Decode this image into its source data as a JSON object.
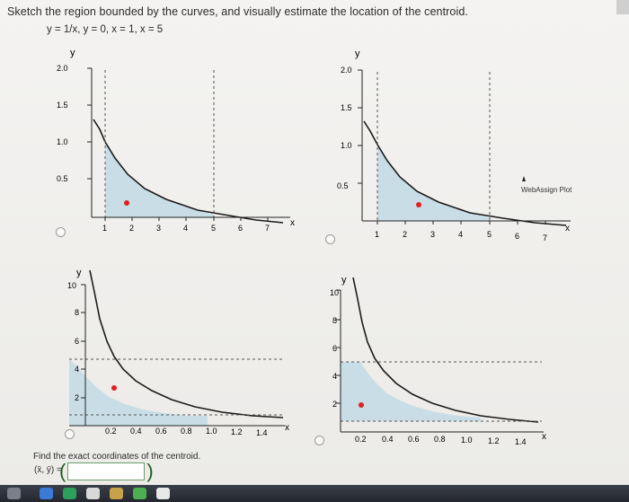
{
  "question": "Sketch the region bounded by the curves, and visually estimate the location of the centroid.",
  "equation": "y = 1/x, y = 0, x = 1, x = 5",
  "panels": [
    {
      "id": "A",
      "y_label": "y",
      "x_label": "x",
      "y_ticks": [
        "2.0",
        "1.5",
        "1.0",
        "0.5"
      ],
      "x_ticks": [
        "1",
        "2",
        "3",
        "4",
        "5",
        "6",
        "7"
      ],
      "watermark": ""
    },
    {
      "id": "B",
      "y_label": "y",
      "x_label": "x",
      "y_ticks": [
        "2.0",
        "1.5",
        "1.0",
        "0.5"
      ],
      "x_ticks": [
        "1",
        "2",
        "3",
        "4",
        "5",
        "6",
        "7"
      ],
      "watermark": "WebAssign Plot"
    },
    {
      "id": "C",
      "y_label": "y",
      "x_label": "x",
      "y_ticks": [
        "10",
        "8",
        "6",
        "4",
        "2"
      ],
      "x_ticks": [
        "0.2",
        "0.4",
        "0.6",
        "0.8",
        "1.0",
        "1.2",
        "1.4"
      ],
      "watermark": ""
    },
    {
      "id": "D",
      "y_label": "y",
      "x_label": "x",
      "y_ticks": [
        "10",
        "8",
        "6",
        "4",
        "2"
      ],
      "x_ticks": [
        "0.2",
        "0.4",
        "0.6",
        "0.8",
        "1.0",
        "1.2",
        "1.4"
      ],
      "watermark": ""
    }
  ],
  "find_prompt": "Find the exact coordinates of the centroid.",
  "coords_label": "(x̄, ȳ) =",
  "answer": {
    "open": "(",
    "close": ")",
    "value": ""
  },
  "colors": {
    "region_fill": "#c9dde6",
    "curve": "#1a1a1a",
    "centroid": "#e02020",
    "dashed": "#555555",
    "paren": "#1b5e20"
  }
}
